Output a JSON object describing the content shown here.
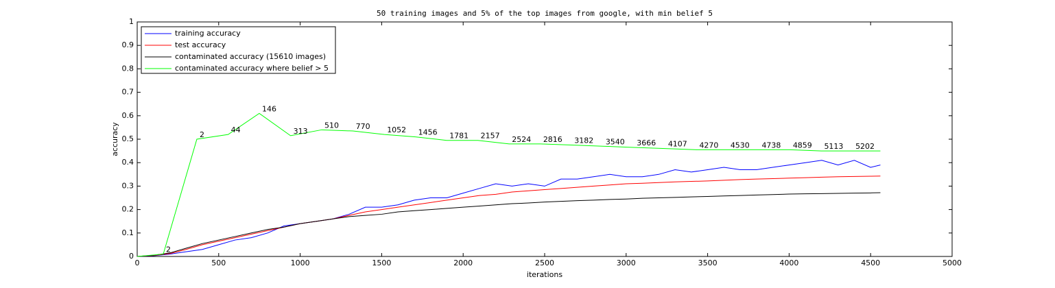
{
  "chart_data": {
    "type": "line",
    "title": "50 training images and 5% of the top images from google, with min belief 5",
    "x_label": "iterations",
    "y_label": "accuracy",
    "xlim": [
      0,
      5000
    ],
    "xticks": [
      0,
      500,
      1000,
      1500,
      2000,
      2500,
      3000,
      3500,
      4000,
      4500,
      5000
    ],
    "ylim": [
      0,
      1
    ],
    "yticks": [
      0,
      0.1,
      0.2,
      0.3,
      0.4,
      0.5,
      0.6,
      0.7,
      0.8,
      0.9,
      1
    ],
    "grid": false,
    "legend": "upper-left",
    "x": [
      0,
      100,
      200,
      300,
      400,
      500,
      600,
      700,
      800,
      900,
      1000,
      1100,
      1200,
      1300,
      1400,
      1500,
      1600,
      1700,
      1800,
      1900,
      2000,
      2100,
      2200,
      2300,
      2400,
      2500,
      2600,
      2700,
      2800,
      2900,
      3000,
      3100,
      3200,
      3300,
      3400,
      3500,
      3600,
      3700,
      3800,
      3900,
      4000,
      4100,
      4200,
      4300,
      4400,
      4500,
      4560
    ],
    "series": [
      {
        "name": "training accuracy",
        "color": "#0000ff",
        "values": [
          0,
          0.003,
          0.01,
          0.02,
          0.03,
          0.05,
          0.07,
          0.08,
          0.1,
          0.13,
          0.14,
          0.15,
          0.16,
          0.18,
          0.21,
          0.21,
          0.22,
          0.24,
          0.25,
          0.25,
          0.27,
          0.29,
          0.31,
          0.3,
          0.31,
          0.3,
          0.33,
          0.33,
          0.34,
          0.35,
          0.34,
          0.34,
          0.35,
          0.37,
          0.36,
          0.37,
          0.38,
          0.37,
          0.37,
          0.38,
          0.39,
          0.4,
          0.41,
          0.39,
          0.41,
          0.38,
          0.39
        ]
      },
      {
        "name": "test accuracy",
        "color": "#ff0000",
        "values": [
          0,
          0.004,
          0.012,
          0.03,
          0.05,
          0.065,
          0.08,
          0.095,
          0.11,
          0.125,
          0.14,
          0.15,
          0.16,
          0.175,
          0.19,
          0.2,
          0.21,
          0.22,
          0.23,
          0.24,
          0.25,
          0.26,
          0.265,
          0.275,
          0.28,
          0.285,
          0.29,
          0.295,
          0.3,
          0.305,
          0.31,
          0.312,
          0.315,
          0.318,
          0.32,
          0.322,
          0.325,
          0.328,
          0.33,
          0.332,
          0.334,
          0.336,
          0.338,
          0.34,
          0.341,
          0.342,
          0.343
        ]
      },
      {
        "name": "contaminated accuracy (15610 images)",
        "color": "#000000",
        "values": [
          0,
          0.005,
          0.015,
          0.035,
          0.055,
          0.07,
          0.085,
          0.1,
          0.115,
          0.125,
          0.14,
          0.15,
          0.16,
          0.17,
          0.175,
          0.18,
          0.19,
          0.195,
          0.2,
          0.205,
          0.21,
          0.215,
          0.22,
          0.225,
          0.228,
          0.232,
          0.235,
          0.238,
          0.24,
          0.243,
          0.245,
          0.248,
          0.25,
          0.252,
          0.254,
          0.256,
          0.258,
          0.26,
          0.262,
          0.264,
          0.266,
          0.267,
          0.268,
          0.269,
          0.27,
          0.271,
          0.272
        ]
      },
      {
        "name": "contaminated accuracy where belief > 5",
        "color": "#00ff00",
        "x": [
          0,
          160,
          366,
          558,
          749,
          941,
          1132,
          1324,
          1516,
          1707,
          1899,
          2090,
          2282,
          2474,
          2665,
          2857,
          3048,
          3240,
          3432,
          3623,
          3815,
          4006,
          4198,
          4390,
          4560
        ],
        "values": [
          0,
          0.01,
          0.5,
          0.52,
          0.61,
          0.515,
          0.54,
          0.535,
          0.52,
          0.51,
          0.495,
          0.495,
          0.48,
          0.48,
          0.475,
          0.47,
          0.465,
          0.46,
          0.455,
          0.455,
          0.455,
          0.455,
          0.45,
          0.45,
          0.45
        ],
        "point_labels": [
          null,
          "2",
          "2",
          "44",
          "146",
          "313",
          "510",
          "770",
          "1052",
          "1456",
          "1781",
          "2157",
          "2524",
          "2816",
          "3182",
          "3540",
          "3666",
          "4107",
          "4270",
          "4530",
          "4738",
          "4859",
          "5113",
          "5202",
          null
        ]
      }
    ]
  }
}
